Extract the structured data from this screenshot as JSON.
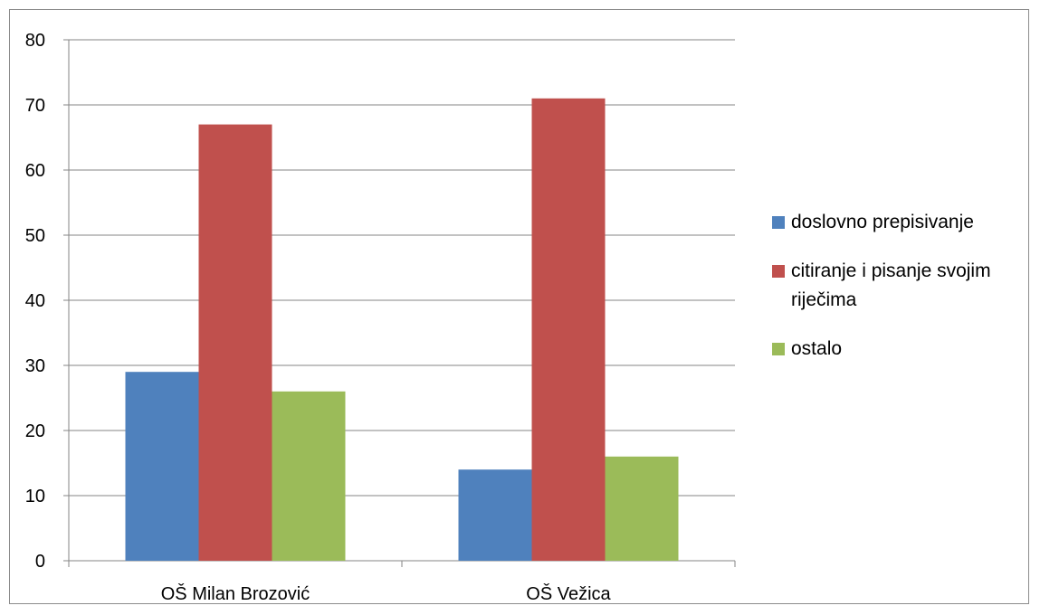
{
  "chart_data": {
    "type": "bar",
    "categories": [
      "OŠ Milan Brozović",
      "OŠ Vežica"
    ],
    "series": [
      {
        "name": "doslovno prepisivanje",
        "values": [
          29,
          14
        ],
        "color": "#4f81bd"
      },
      {
        "name": "citiranje i pisanje svojim riječima",
        "values": [
          67,
          71
        ],
        "color": "#c0504d"
      },
      {
        "name": "ostalo",
        "values": [
          26,
          16
        ],
        "color": "#9bbb59"
      }
    ],
    "y_ticks": [
      "0",
      "10",
      "20",
      "30",
      "40",
      "50",
      "60",
      "70",
      "80"
    ],
    "ylim": [
      0,
      80
    ],
    "grid": true,
    "legend_position": "right",
    "title": "",
    "xlabel": "",
    "ylabel": ""
  }
}
